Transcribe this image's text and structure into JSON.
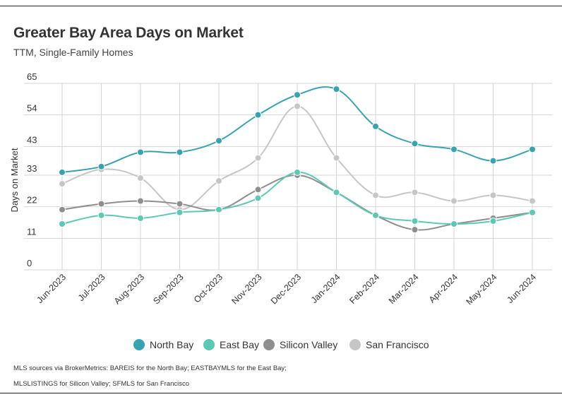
{
  "title": "Greater Bay Area Days on Market",
  "subtitle": "TTM, Single-Family Homes",
  "source_note": "MLS sources via BrokerMetrics: BAREIS for the North Bay; EASTBAYMLS for the East Bay; MLSLISTINGS for Silicon Valley; SFMLS for San Francisco",
  "chart_data": {
    "type": "line",
    "title": "Greater Bay Area Days on Market",
    "subtitle": "TTM, Single-Family Homes",
    "xlabel": "",
    "ylabel": "Days on Market",
    "ylim": [
      0,
      65
    ],
    "yticks": [
      0,
      11,
      22,
      33,
      43,
      54,
      65
    ],
    "grid": true,
    "legend_position": "bottom",
    "categories": [
      "Jun-2023",
      "Jul-2023",
      "Aug-2023",
      "Sep-2023",
      "Oct-2023",
      "Nov-2023",
      "Dec-2023",
      "Jan-2024",
      "Feb-2024",
      "Mar-2024",
      "Apr-2024",
      "May-2024",
      "Jun-2024"
    ],
    "series": [
      {
        "name": "North Bay",
        "color": "#38a3b0",
        "values": [
          34,
          36,
          41,
          41,
          45,
          54,
          61,
          63,
          50,
          44,
          42,
          38,
          42
        ]
      },
      {
        "name": "East Bay",
        "color": "#5cc9b5",
        "values": [
          16,
          19,
          18,
          20,
          21,
          25,
          34,
          27,
          19,
          17,
          16,
          17,
          20
        ]
      },
      {
        "name": "Silicon Valley",
        "color": "#8e8e8e",
        "values": [
          21,
          23,
          24,
          23,
          21,
          28,
          33,
          27,
          19,
          14,
          16,
          18,
          20
        ]
      },
      {
        "name": "San Francisco",
        "color": "#c6c6c6",
        "values": [
          30,
          35,
          32,
          21,
          31,
          39,
          57,
          39,
          26,
          27,
          24,
          26,
          24
        ]
      }
    ]
  }
}
